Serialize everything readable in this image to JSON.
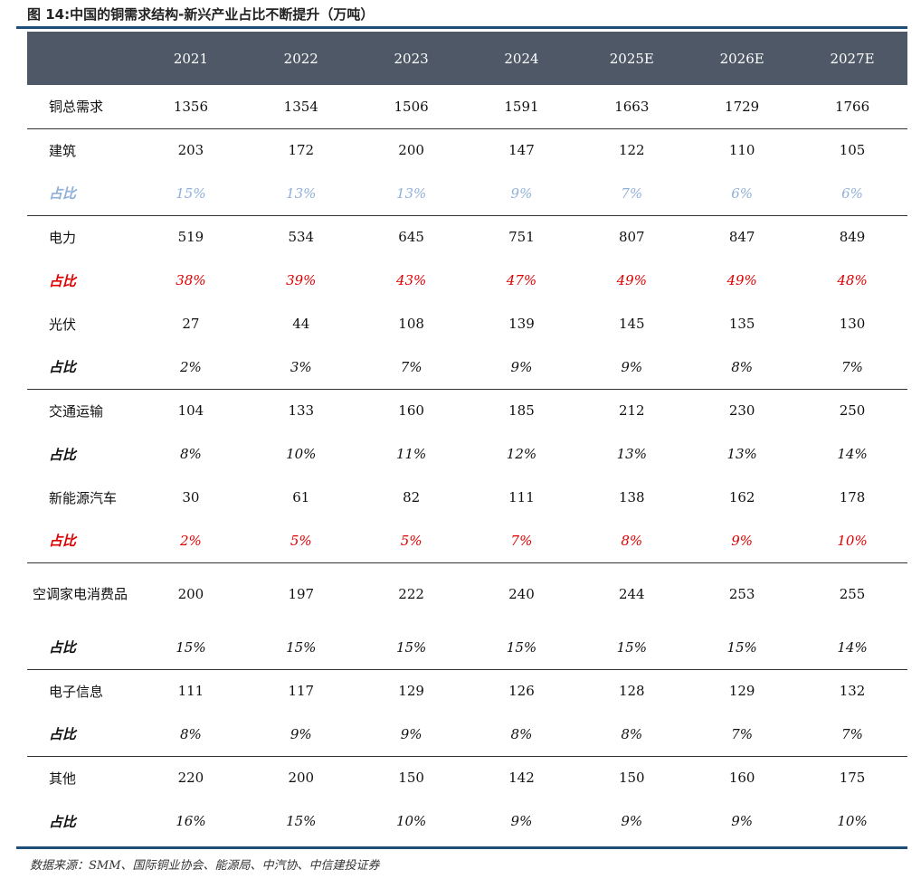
{
  "title": "图 14:中国的铜需求结构-新兴产业占比不断提升（万吨）",
  "years": [
    "2021",
    "2022",
    "2023",
    "2024",
    "2025E",
    "2026E",
    "2027E"
  ],
  "rows": [
    {
      "label": "铜总需求",
      "values": [
        "1356",
        "1354",
        "1506",
        "1591",
        "1663",
        "1729",
        "1766"
      ]
    },
    {
      "label": "建筑",
      "values": [
        "203",
        "172",
        "200",
        "147",
        "122",
        "110",
        "105"
      ]
    },
    {
      "label": "占比",
      "values": [
        "15%",
        "13%",
        "13%",
        "9%",
        "7%",
        "6%",
        "6%"
      ]
    },
    {
      "label": "电力",
      "values": [
        "519",
        "534",
        "645",
        "751",
        "807",
        "847",
        "849"
      ]
    },
    {
      "label": "占比",
      "values": [
        "38%",
        "39%",
        "43%",
        "47%",
        "49%",
        "49%",
        "48%"
      ]
    },
    {
      "label": "光伏",
      "values": [
        "27",
        "44",
        "108",
        "139",
        "145",
        "135",
        "130"
      ]
    },
    {
      "label": "占比",
      "values": [
        "2%",
        "3%",
        "7%",
        "9%",
        "9%",
        "8%",
        "7%"
      ]
    },
    {
      "label": "交通运输",
      "values": [
        "104",
        "133",
        "160",
        "185",
        "212",
        "230",
        "250"
      ]
    },
    {
      "label": "占比",
      "values": [
        "8%",
        "10%",
        "11%",
        "12%",
        "13%",
        "13%",
        "14%"
      ]
    },
    {
      "label": "新能源汽车",
      "values": [
        "30",
        "61",
        "82",
        "111",
        "138",
        "162",
        "178"
      ]
    },
    {
      "label": "占比",
      "values": [
        "2%",
        "5%",
        "5%",
        "7%",
        "8%",
        "9%",
        "10%"
      ]
    },
    {
      "label": "空调家电消费品",
      "values": [
        "200",
        "197",
        "222",
        "240",
        "244",
        "253",
        "255"
      ]
    },
    {
      "label": "占比",
      "values": [
        "15%",
        "15%",
        "15%",
        "15%",
        "15%",
        "15%",
        "14%"
      ]
    },
    {
      "label": "电子信息",
      "values": [
        "111",
        "117",
        "129",
        "126",
        "128",
        "129",
        "132"
      ]
    },
    {
      "label": "占比",
      "values": [
        "8%",
        "9%",
        "9%",
        "8%",
        "8%",
        "7%",
        "7%"
      ]
    },
    {
      "label": "其他",
      "values": [
        "220",
        "200",
        "150",
        "142",
        "150",
        "160",
        "175"
      ]
    },
    {
      "label": "占比",
      "values": [
        "16%",
        "15%",
        "10%",
        "9%",
        "9%",
        "9%",
        "10%"
      ]
    }
  ],
  "colors": {
    "header_bg": "#4f5866",
    "rule": "#1f4e79",
    "pct_blue": "#8fb0d8",
    "pct_red": "#e00000"
  },
  "source": "数据来源：SMM、国际铜业协会、能源局、中汽协、中信建投证券"
}
